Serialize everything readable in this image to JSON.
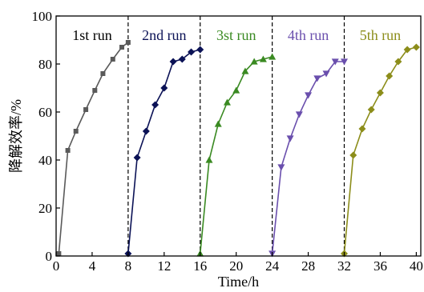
{
  "chart_data": {
    "type": "line",
    "xlabel": "Time/h",
    "ylabel": "降解效率/%",
    "xlim": [
      0,
      40.5
    ],
    "ylim": [
      0,
      100
    ],
    "x_ticks": [
      0,
      4,
      8,
      12,
      16,
      20,
      24,
      28,
      32,
      36,
      40
    ],
    "y_ticks": [
      0,
      20,
      40,
      60,
      80,
      100
    ],
    "separators_x": [
      8,
      16,
      24,
      32
    ],
    "series": [
      {
        "name": "1st run",
        "color": "#5a5a5a",
        "marker": "square",
        "points": [
          [
            0.3,
            1
          ],
          [
            1.3,
            44
          ],
          [
            2.2,
            52
          ],
          [
            3.3,
            61
          ],
          [
            4.3,
            69
          ],
          [
            5.2,
            76
          ],
          [
            6.3,
            82
          ],
          [
            7.3,
            87
          ],
          [
            8.0,
            89
          ]
        ]
      },
      {
        "name": "2nd run",
        "color": "#0b1256",
        "marker": "diamond",
        "points": [
          [
            8.0,
            1
          ],
          [
            9.0,
            41
          ],
          [
            10.0,
            52
          ],
          [
            11.0,
            63
          ],
          [
            12.0,
            70
          ],
          [
            13.0,
            81
          ],
          [
            14.0,
            82
          ],
          [
            15.0,
            85
          ],
          [
            16.0,
            86
          ]
        ]
      },
      {
        "name": "3st run",
        "color": "#3a8a22",
        "marker": "triangle-up",
        "points": [
          [
            16.0,
            1
          ],
          [
            17.0,
            40
          ],
          [
            18.0,
            55
          ],
          [
            19.0,
            64
          ],
          [
            20.0,
            69
          ],
          [
            21.0,
            77
          ],
          [
            22.0,
            81
          ],
          [
            23.0,
            82
          ],
          [
            24.0,
            83
          ]
        ]
      },
      {
        "name": "4th run",
        "color": "#6a4fad",
        "marker": "triangle-down",
        "points": [
          [
            24.0,
            1
          ],
          [
            25.0,
            37
          ],
          [
            26.0,
            49
          ],
          [
            27.0,
            59
          ],
          [
            28.0,
            67
          ],
          [
            29.0,
            74
          ],
          [
            30.0,
            76
          ],
          [
            31.0,
            81
          ],
          [
            32.0,
            81
          ]
        ]
      },
      {
        "name": "5th run",
        "color": "#8c8d1a",
        "marker": "diamond",
        "points": [
          [
            32.0,
            1
          ],
          [
            33.0,
            42
          ],
          [
            34.0,
            53
          ],
          [
            35.0,
            61
          ],
          [
            36.0,
            68
          ],
          [
            37.0,
            75
          ],
          [
            38.0,
            81
          ],
          [
            39.0,
            86
          ],
          [
            40.0,
            87
          ]
        ]
      }
    ],
    "run_labels": [
      {
        "text": "1st run",
        "x": 4.0,
        "y": 92
      },
      {
        "text": "2nd run",
        "x": 12.0,
        "y": 92
      },
      {
        "text": "3st run",
        "x": 20.0,
        "y": 92
      },
      {
        "text": "4th run",
        "x": 28.0,
        "y": 92
      },
      {
        "text": "5th run",
        "x": 36.0,
        "y": 92
      }
    ]
  }
}
